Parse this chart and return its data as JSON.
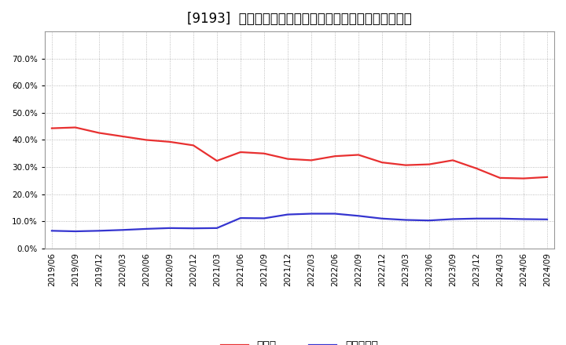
{
  "title": "[9193]  現预金、有利子負債の総資産に対する比率の推移",
  "x_labels": [
    "2019/06",
    "2019/09",
    "2019/12",
    "2020/03",
    "2020/06",
    "2020/09",
    "2020/12",
    "2021/03",
    "2021/06",
    "2021/09",
    "2021/12",
    "2022/03",
    "2022/06",
    "2022/09",
    "2022/12",
    "2023/03",
    "2023/06",
    "2023/09",
    "2023/12",
    "2024/03",
    "2024/06",
    "2024/09"
  ],
  "cash_values": [
    0.443,
    0.446,
    0.426,
    0.413,
    0.4,
    0.393,
    0.38,
    0.323,
    0.355,
    0.35,
    0.33,
    0.325,
    0.34,
    0.345,
    0.317,
    0.307,
    0.31,
    0.325,
    0.295,
    0.26,
    0.258,
    0.263
  ],
  "debt_values": [
    0.065,
    0.063,
    0.065,
    0.068,
    0.072,
    0.075,
    0.074,
    0.075,
    0.112,
    0.111,
    0.125,
    0.128,
    0.128,
    0.12,
    0.11,
    0.105,
    0.103,
    0.108,
    0.11,
    0.11,
    0.108,
    0.107
  ],
  "cash_color": "#e83030",
  "debt_color": "#3535d0",
  "background_color": "#ffffff",
  "plot_bg_color": "#ffffff",
  "grid_color": "#aaaaaa",
  "ylim": [
    0.0,
    0.8
  ],
  "yticks": [
    0.0,
    0.1,
    0.2,
    0.3,
    0.4,
    0.5,
    0.6,
    0.7
  ],
  "legend_cash": "現预金",
  "legend_debt": "有利子負債",
  "title_fontsize": 12,
  "legend_fontsize": 10,
  "tick_fontsize": 7.5
}
